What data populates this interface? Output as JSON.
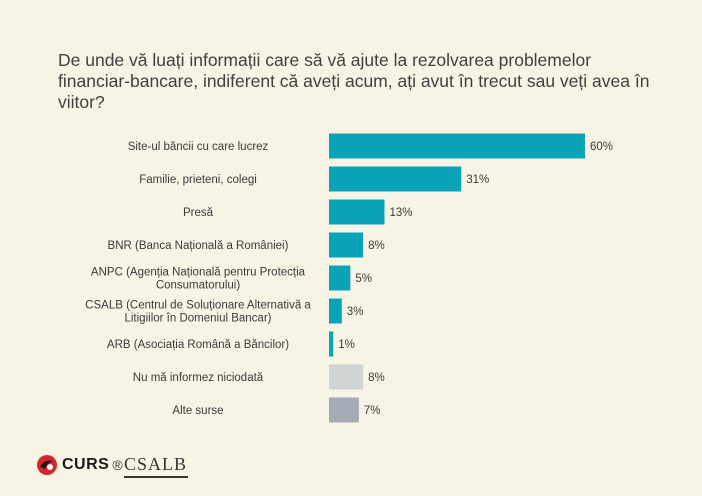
{
  "title": "De unde vă luați informații care să vă ajute la rezolvarea problemelor financiar-bancare, indiferent că aveți acum, ați avut în trecut sau veți avea în viitor?",
  "chart_data": {
    "type": "bar",
    "orientation": "horizontal",
    "categories": [
      [
        "Site-ul băncii cu care lucrez"
      ],
      [
        "Familie, prieteni, colegi"
      ],
      [
        "Presă"
      ],
      [
        "BNR (Banca Națională a României)"
      ],
      [
        "ANPC (Agenția Națională pentru Protecția",
        "Consumatorului)"
      ],
      [
        "CSALB (Centrul de Soluționare Alternativă a",
        "Litigiilor în Domeniul Bancar)"
      ],
      [
        "ARB (Asociația Română a Băncilor)"
      ],
      [
        "Nu mă informez niciodată"
      ],
      [
        "Alte surse"
      ]
    ],
    "values": [
      60,
      31,
      13,
      8,
      5,
      3,
      1,
      8,
      7
    ],
    "value_labels": [
      "60%",
      "31%",
      "13%",
      "8%",
      "5%",
      "3%",
      "1%",
      "8%",
      "7%"
    ],
    "unit": "%",
    "colors": [
      "#0aa3b8",
      "#0aa3b8",
      "#0aa3b8",
      "#0aa3b8",
      "#0aa3b8",
      "#0aa3b8",
      "#0aa3b8",
      "#cfd5d5",
      "#a3abb5"
    ],
    "xlim": [
      0,
      60
    ],
    "grid": false,
    "legend": false
  },
  "footer": {
    "curs_logo_text": "CURS",
    "registered_mark": "®",
    "csalb_logo_text": "CSALB"
  }
}
